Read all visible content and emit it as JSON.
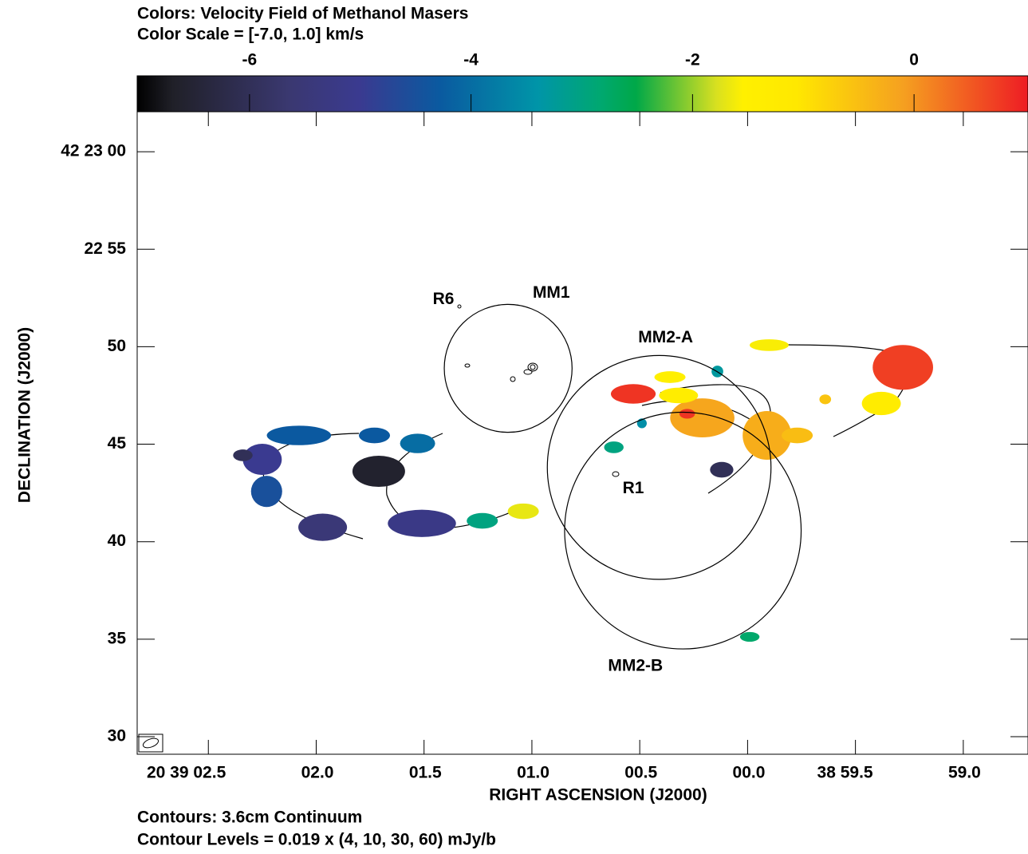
{
  "chart_data": {
    "type": "image",
    "title": [
      "Colors: Velocity Field of Methanol Masers",
      "Color Scale = [-7.0, 1.0] km/s"
    ],
    "footer": [
      "Contours: 3.6cm Continuum",
      "Contour Levels = 0.019 x (4, 10, 30, 60) mJy/b"
    ],
    "x_label": "RIGHT ASCENSION (J2000)",
    "y_label": "DECLINATION (J2000)",
    "xlim": [
      62.83,
      58.7
    ],
    "ylim": [
      29.1,
      62.05
    ],
    "xticks": [
      {
        "value": 62.5,
        "label": "20 39 02.5"
      },
      {
        "value": 62.0,
        "label": "02.0"
      },
      {
        "value": 61.5,
        "label": "01.5"
      },
      {
        "value": 61.0,
        "label": "01.0"
      },
      {
        "value": 60.5,
        "label": "00.5"
      },
      {
        "value": 60.0,
        "label": "00.0"
      },
      {
        "value": 59.5,
        "label": "38 59.5"
      },
      {
        "value": 59.0,
        "label": "59.0"
      }
    ],
    "yticks": [
      {
        "value": 60,
        "label": "42 23 00"
      },
      {
        "value": 55,
        "label": "22 55"
      },
      50,
      45,
      40,
      35,
      30
    ],
    "colorbar_lim": [
      -7,
      1
    ],
    "colorbar_ticks": [
      -6,
      -4,
      -2,
      0
    ],
    "spots": {
      "ra": [
        62.08,
        62.25,
        62.34,
        62.23,
        61.97,
        61.71,
        61.73,
        61.53,
        61.51,
        61.23,
        61.04,
        60.53,
        60.36,
        60.21,
        60.32,
        60.28,
        59.91,
        59.77,
        59.9,
        59.28,
        59.38,
        59.64,
        60.12,
        60.14,
        60.62,
        60.49,
        59.99
      ],
      "dec": [
        45.45,
        44.22,
        44.43,
        42.58,
        40.74,
        43.61,
        45.45,
        45.04,
        40.94,
        41.07,
        41.56,
        47.58,
        48.44,
        46.35,
        47.5,
        46.56,
        45.45,
        45.45,
        50.08,
        48.94,
        47.09,
        47.3,
        43.69,
        48.73,
        44.84,
        46.07,
        35.12
      ],
      "velocity": [
        -4.3,
        -5.0,
        -6.0,
        -4.5,
        -5.5,
        -6.6,
        -4.3,
        -4.0,
        -5.2,
        -3.0,
        -1.7,
        0.8,
        -1.5,
        -0.2,
        -1.4,
        0.8,
        -0.3,
        -0.5,
        -1.6,
        0.7,
        -1.3,
        -0.6,
        -6.0,
        -3.3,
        -3.0,
        -3.5,
        -2.8
      ],
      "width": [
        3.3,
        2.0,
        1.0,
        1.6,
        2.5,
        2.7,
        1.6,
        1.8,
        3.5,
        1.6,
        1.6,
        2.3,
        1.6,
        3.3,
        2.0,
        0.8,
        2.5,
        1.6,
        2.0,
        3.1,
        2.0,
        0.6,
        1.2,
        0.6,
        1.0,
        0.5,
        1.0
      ],
      "height": [
        1.0,
        1.6,
        0.6,
        1.6,
        1.4,
        1.6,
        0.8,
        1.0,
        1.4,
        0.8,
        0.8,
        1.0,
        0.6,
        2.0,
        0.8,
        0.5,
        2.5,
        0.8,
        0.6,
        2.3,
        1.2,
        0.5,
        0.8,
        0.6,
        0.6,
        0.5,
        0.5
      ]
    },
    "regions": [
      {
        "ra": 61.11,
        "dec": 48.89,
        "radius": 3.28
      },
      {
        "ra": 60.41,
        "dec": 43.81,
        "radius": 5.74
      },
      {
        "ra": 60.3,
        "dec": 40.57,
        "radius": 6.07
      }
    ],
    "annotations": [
      {
        "text": "R6",
        "ra": 61.41,
        "dec": 52.42
      },
      {
        "text": "MM1",
        "ra": 60.91,
        "dec": 52.75
      },
      {
        "text": "MM2-A",
        "ra": 60.38,
        "dec": 50.45
      },
      {
        "text": "R1",
        "ra": 60.53,
        "dec": 42.71
      },
      {
        "text": "MM2-B",
        "ra": 60.52,
        "dec": 33.61
      }
    ]
  }
}
